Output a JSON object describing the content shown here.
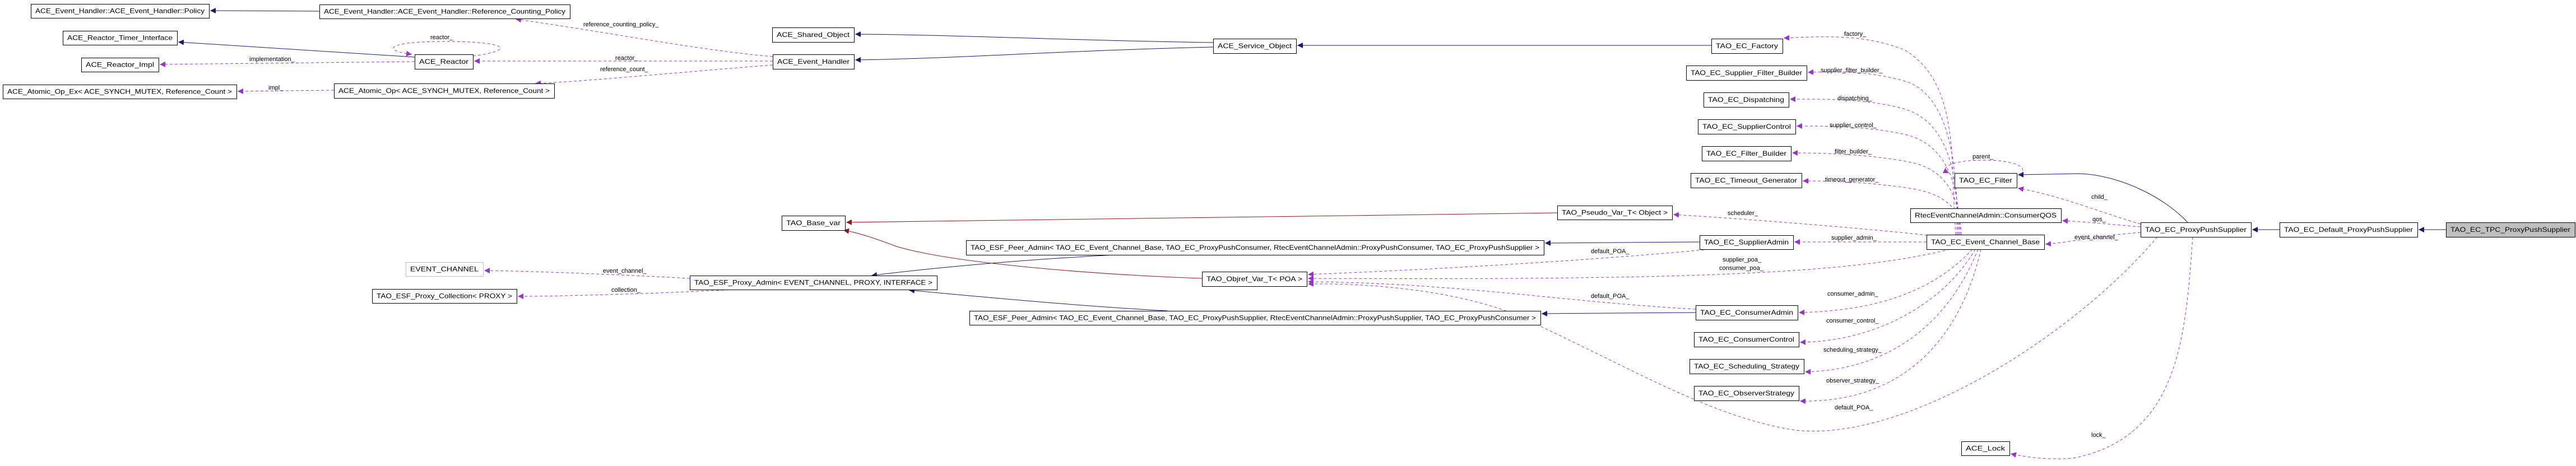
{
  "colors": {
    "inheritance": "#191970",
    "usage": "#9a32cd",
    "template_instance": "#8b1a1a",
    "current_node_fill": "#bfbfbf",
    "external_node_border": "#bfbfbf"
  },
  "nodes": {
    "policy": "ACE_Event_Handler::ACE_Event_Handler::Policy",
    "rcpolicy": "ACE_Event_Handler::ACE_Event_Handler::Reference_Counting_Policy",
    "timer_if": "ACE_Reactor_Timer_Interface",
    "reactor_impl": "ACE_Reactor_Impl",
    "reactor": "ACE_Reactor",
    "atomic_ex": "ACE_Atomic_Op_Ex< ACE_SYNCH_MUTEX, Reference_Count >",
    "atomic": "ACE_Atomic_Op< ACE_SYNCH_MUTEX, Reference_Count >",
    "shared_obj": "ACE_Shared_Object",
    "event_handler": "ACE_Event_Handler",
    "base_var": "TAO_Base_var",
    "event_channel_param": "EVENT_CHANNEL",
    "proxy_collection": "TAO_ESF_Proxy_Collection< PROXY >",
    "proxy_admin": "TAO_ESF_Proxy_Admin< EVENT_CHANNEL, PROXY, INTERFACE >",
    "peer_consumer": "TAO_ESF_Peer_Admin< TAO_EC_Event_Channel_Base, TAO_EC_ProxyPushConsumer, RtecEventChannelAdmin::ProxyPushConsumer, TAO_EC_ProxyPushSupplier >",
    "peer_supplier": "TAO_ESF_Peer_Admin< TAO_EC_Event_Channel_Base, TAO_EC_ProxyPushSupplier, RtecEventChannelAdmin::ProxyPushSupplier, TAO_EC_ProxyPushConsumer >",
    "objref": "TAO_Objref_Var_T< POA >",
    "service_obj": "ACE_Service_Object",
    "pseudo_var": "TAO_Pseudo_Var_T< Object >",
    "factory": "TAO_EC_Factory",
    "sfb": "TAO_EC_Supplier_Filter_Builder",
    "dispatching": "TAO_EC_Dispatching",
    "supplier_control": "TAO_EC_SupplierControl",
    "filter_builder": "TAO_EC_Filter_Builder",
    "timeout_gen": "TAO_EC_Timeout_Generator",
    "filter": "TAO_EC_Filter",
    "consumer_qos": "RtecEventChannelAdmin::ConsumerQOS",
    "supplier_admin": "TAO_EC_SupplierAdmin",
    "ecb": "TAO_EC_Event_Channel_Base",
    "consumer_admin": "TAO_EC_ConsumerAdmin",
    "consumer_control": "TAO_EC_ConsumerControl",
    "scheduling": "TAO_EC_Scheduling_Strategy",
    "observer": "TAO_EC_ObserverStrategy",
    "ace_lock": "ACE_Lock",
    "pps": "TAO_EC_ProxyPushSupplier",
    "default_pps": "TAO_EC_Default_ProxyPushSupplier",
    "tpc_pps": "TAO_EC_TPC_ProxyPushSupplier"
  },
  "current_node": "tpc_pps",
  "external_nodes": [
    "event_channel_param"
  ],
  "edges": [
    {
      "id": "e1",
      "from": "rcpolicy",
      "to": "policy",
      "type": "inherit",
      "labels": []
    },
    {
      "id": "e2",
      "from": "reactor",
      "to": "timer_if",
      "type": "inherit",
      "labels": []
    },
    {
      "id": "e3",
      "from": "service_obj",
      "to": "shared_obj",
      "type": "inherit",
      "labels": []
    },
    {
      "id": "e4",
      "from": "service_obj",
      "to": "event_handler",
      "type": "inherit",
      "labels": []
    },
    {
      "id": "e5",
      "from": "factory",
      "to": "service_obj",
      "type": "inherit",
      "labels": []
    },
    {
      "id": "e6",
      "from": "peer_consumer",
      "to": "proxy_admin",
      "type": "inherit",
      "labels": []
    },
    {
      "id": "e7",
      "from": "peer_supplier",
      "to": "proxy_admin",
      "type": "inherit",
      "labels": []
    },
    {
      "id": "e8",
      "from": "supplier_admin",
      "to": "peer_consumer",
      "type": "inherit",
      "labels": []
    },
    {
      "id": "e9",
      "from": "consumer_admin",
      "to": "peer_supplier",
      "type": "inherit",
      "labels": []
    },
    {
      "id": "e10",
      "from": "pps",
      "to": "filter",
      "type": "inherit",
      "labels": []
    },
    {
      "id": "e11",
      "from": "default_pps",
      "to": "pps",
      "type": "inherit",
      "labels": []
    },
    {
      "id": "e12",
      "from": "tpc_pps",
      "to": "default_pps",
      "type": "inherit",
      "labels": []
    },
    {
      "id": "e13",
      "from": "pseudo_var",
      "to": "base_var",
      "type": "template",
      "labels": []
    },
    {
      "id": "e14",
      "from": "objref",
      "to": "base_var",
      "type": "template",
      "labels": []
    },
    {
      "id": "e15",
      "from": "event_handler",
      "to": "rcpolicy",
      "type": "usage",
      "labels": [
        "reference_counting_policy_"
      ]
    },
    {
      "id": "e16",
      "from": "event_handler",
      "to": "reactor",
      "type": "usage",
      "labels": [
        "reactor_"
      ]
    },
    {
      "id": "e17",
      "from": "event_handler",
      "to": "atomic",
      "type": "usage",
      "labels": [
        "reference_count_"
      ]
    },
    {
      "id": "e18",
      "from": "reactor",
      "to": "reactor",
      "type": "usage",
      "labels": [
        "reactor_"
      ]
    },
    {
      "id": "e19",
      "from": "reactor",
      "to": "reactor_impl",
      "type": "usage",
      "labels": [
        "implementation_"
      ]
    },
    {
      "id": "e20",
      "from": "atomic",
      "to": "atomic_ex",
      "type": "usage",
      "labels": [
        "impl_"
      ]
    },
    {
      "id": "e21",
      "from": "proxy_admin",
      "to": "event_channel_param",
      "type": "usage",
      "labels": [
        "event_channel_"
      ]
    },
    {
      "id": "e22",
      "from": "proxy_admin",
      "to": "proxy_collection",
      "type": "usage",
      "labels": [
        "collection_"
      ]
    },
    {
      "id": "e23",
      "from": "ecb",
      "to": "factory",
      "type": "usage",
      "labels": [
        "factory_"
      ]
    },
    {
      "id": "e24",
      "from": "ecb",
      "to": "sfb",
      "type": "usage",
      "labels": [
        "supplier_filter_builder_"
      ]
    },
    {
      "id": "e25",
      "from": "ecb",
      "to": "dispatching",
      "type": "usage",
      "labels": [
        "dispatching_"
      ]
    },
    {
      "id": "e26",
      "from": "ecb",
      "to": "supplier_control",
      "type": "usage",
      "labels": [
        "supplier_control_"
      ]
    },
    {
      "id": "e27",
      "from": "ecb",
      "to": "filter_builder",
      "type": "usage",
      "labels": [
        "filter_builder_"
      ]
    },
    {
      "id": "e28",
      "from": "ecb",
      "to": "timeout_gen",
      "type": "usage",
      "labels": [
        "timeout_generator_"
      ]
    },
    {
      "id": "e29",
      "from": "ecb",
      "to": "pseudo_var",
      "type": "usage",
      "labels": [
        "scheduler_"
      ]
    },
    {
      "id": "e30",
      "from": "ecb",
      "to": "supplier_admin",
      "type": "usage",
      "labels": [
        "supplier_admin_"
      ]
    },
    {
      "id": "e31",
      "from": "supplier_admin",
      "to": "objref",
      "type": "usage",
      "labels": [
        "default_POA_"
      ]
    },
    {
      "id": "e32",
      "from": "ecb",
      "to": "objref",
      "type": "usage",
      "labels": [
        "supplier_poa_",
        "consumer_poa_"
      ]
    },
    {
      "id": "e33",
      "from": "consumer_admin",
      "to": "objref",
      "type": "usage",
      "labels": [
        "default_POA_"
      ]
    },
    {
      "id": "e34",
      "from": "pps",
      "to": "objref",
      "type": "usage",
      "labels": [
        "default_POA_"
      ]
    },
    {
      "id": "e35",
      "from": "ecb",
      "to": "consumer_admin",
      "type": "usage",
      "labels": [
        "consumer_admin_"
      ]
    },
    {
      "id": "e36",
      "from": "ecb",
      "to": "consumer_control",
      "type": "usage",
      "labels": [
        "consumer_control_"
      ]
    },
    {
      "id": "e37",
      "from": "ecb",
      "to": "scheduling",
      "type": "usage",
      "labels": [
        "scheduling_strategy_"
      ]
    },
    {
      "id": "e38",
      "from": "ecb",
      "to": "observer",
      "type": "usage",
      "labels": [
        "observer_strategy_"
      ]
    },
    {
      "id": "e39",
      "from": "pps",
      "to": "ecb",
      "type": "usage",
      "labels": [
        "event_channel_"
      ]
    },
    {
      "id": "e40",
      "from": "pps",
      "to": "consumer_qos",
      "type": "usage",
      "labels": [
        "qos_"
      ]
    },
    {
      "id": "e41",
      "from": "pps",
      "to": "filter",
      "type": "usage",
      "labels": [
        "child_"
      ]
    },
    {
      "id": "e42",
      "from": "filter",
      "to": "filter",
      "type": "usage",
      "labels": [
        "parent_"
      ]
    },
    {
      "id": "e43",
      "from": "pps",
      "to": "ace_lock",
      "type": "usage",
      "labels": [
        "lock_"
      ]
    }
  ]
}
